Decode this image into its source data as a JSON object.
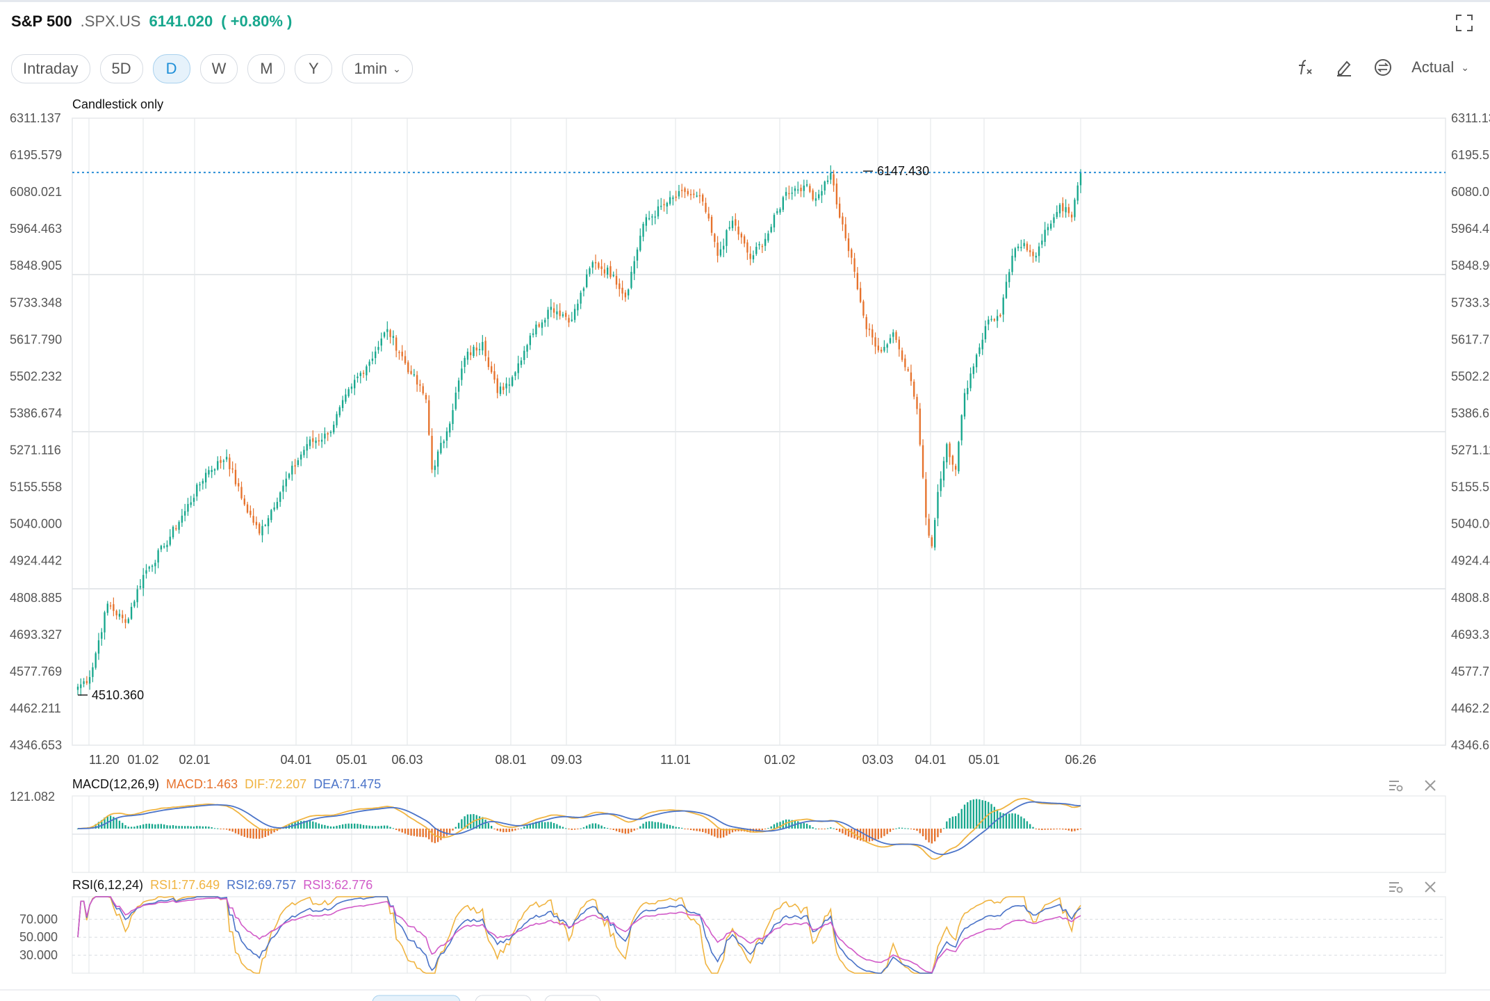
{
  "header": {
    "name": "S&P 500",
    "code": ".SPX.US",
    "price": "6141.020",
    "change": "( +0.80% )"
  },
  "toolbar": {
    "periods": [
      {
        "label": "Intraday",
        "active": false
      },
      {
        "label": "5D",
        "active": false
      },
      {
        "label": "D",
        "active": true
      },
      {
        "label": "W",
        "active": false
      },
      {
        "label": "M",
        "active": false
      },
      {
        "label": "Y",
        "active": false
      }
    ],
    "interval": "1min",
    "adjust": "Actual",
    "icons": [
      "indicator-fx-icon",
      "draw-pen-icon",
      "compare-icon"
    ]
  },
  "colors": {
    "up": "#17a78d",
    "down": "#e6722c",
    "grid": "#e6e8eb",
    "dotted_line": "#2a8fd6",
    "dif": "#f0b441",
    "dea": "#4a73c8",
    "rsi1": "#f0b441",
    "rsi2": "#4a73c8",
    "rsi3": "#d15ac8"
  },
  "chart_data": [
    {
      "type": "candlestick",
      "label": "Candlestick only",
      "x_ticks": [
        "11.20",
        "01.02",
        "02.01",
        "04.01",
        "05.01",
        "06.03",
        "08.01",
        "09.03",
        "11.01",
        "01.02",
        "03.03",
        "04.01",
        "05.01",
        "06.26"
      ],
      "y_ticks": [
        "6311.137",
        "6195.579",
        "6080.021",
        "5964.463",
        "5848.905",
        "5733.348",
        "5617.790",
        "5502.232",
        "5386.674",
        "5271.116",
        "5155.558",
        "5040.000",
        "4924.442",
        "4808.885",
        "4693.327",
        "4577.769",
        "4462.211",
        "4346.653"
      ],
      "ylim": [
        4346.653,
        6311.137
      ],
      "high_marker": "6147.430",
      "low_marker": "4510.360",
      "last_price": 6141.02,
      "close_path": [
        [
          0,
          4530
        ],
        [
          4,
          4560
        ],
        [
          10,
          4790
        ],
        [
          16,
          4730
        ],
        [
          22,
          4880
        ],
        [
          29,
          4970
        ],
        [
          36,
          5080
        ],
        [
          43,
          5200
        ],
        [
          50,
          5250
        ],
        [
          55,
          5120
        ],
        [
          61,
          5010
        ],
        [
          69,
          5160
        ],
        [
          77,
          5290
        ],
        [
          84,
          5320
        ],
        [
          92,
          5470
        ],
        [
          100,
          5580
        ],
        [
          104,
          5650
        ],
        [
          112,
          5510
        ],
        [
          117,
          5430
        ],
        [
          119,
          5210
        ],
        [
          124,
          5330
        ],
        [
          130,
          5560
        ],
        [
          136,
          5610
        ],
        [
          141,
          5450
        ],
        [
          146,
          5500
        ],
        [
          152,
          5630
        ],
        [
          159,
          5720
        ],
        [
          166,
          5680
        ],
        [
          173,
          5860
        ],
        [
          180,
          5820
        ],
        [
          184,
          5750
        ],
        [
          190,
          5980
        ],
        [
          197,
          6040
        ],
        [
          204,
          6080
        ],
        [
          210,
          6050
        ],
        [
          215,
          5880
        ],
        [
          220,
          5990
        ],
        [
          226,
          5870
        ],
        [
          232,
          5950
        ],
        [
          238,
          6080
        ],
        [
          244,
          6100
        ],
        [
          248,
          6060
        ],
        [
          253,
          6140
        ],
        [
          256,
          6000
        ],
        [
          261,
          5830
        ],
        [
          265,
          5650
        ],
        [
          270,
          5580
        ],
        [
          274,
          5640
        ],
        [
          279,
          5520
        ],
        [
          282,
          5400
        ],
        [
          285,
          5060
        ],
        [
          287,
          4970
        ],
        [
          289,
          5140
        ],
        [
          292,
          5290
        ],
        [
          295,
          5210
        ],
        [
          298,
          5450
        ],
        [
          302,
          5570
        ],
        [
          306,
          5680
        ],
        [
          310,
          5690
        ],
        [
          314,
          5880
        ],
        [
          318,
          5920
        ],
        [
          322,
          5880
        ],
        [
          326,
          5970
        ],
        [
          330,
          6040
        ],
        [
          334,
          6000
        ],
        [
          337,
          6141
        ]
      ]
    },
    {
      "type": "bar",
      "indicator": "MACD(12,26,9)",
      "macd_label": "MACD:1.463",
      "dif_label": "DIF:72.207",
      "dea_label": "DEA:71.475",
      "y_tick": "121.082",
      "ylim": [
        -260,
        121.082
      ]
    },
    {
      "type": "line",
      "indicator": "RSI(6,12,24)",
      "rsi1_label": "RSI1:77.649",
      "rsi2_label": "RSI2:69.757",
      "rsi3_label": "RSI3:62.776",
      "y_ticks": [
        "70.000",
        "50.000",
        "30.000"
      ],
      "ylim": [
        10,
        95
      ]
    }
  ]
}
